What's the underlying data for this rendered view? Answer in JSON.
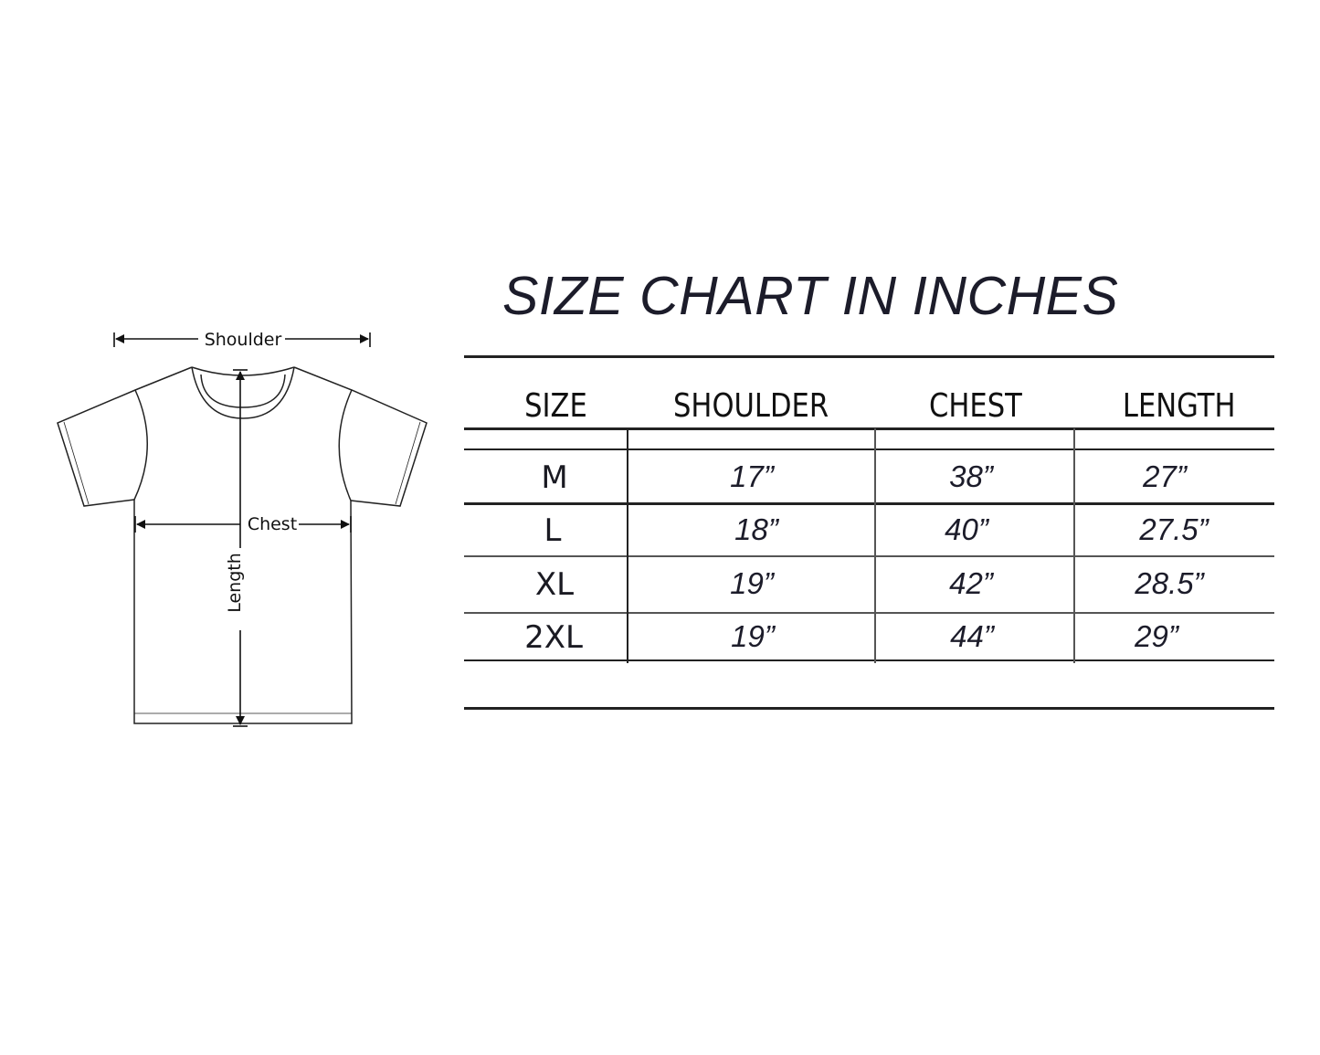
{
  "title": "SIZE CHART IN INCHES",
  "diagram": {
    "shoulder_label": "Shoulder",
    "chest_label": "Chest",
    "length_label": "Length"
  },
  "table": {
    "headers": [
      "SIZE",
      "SHOULDER",
      "CHEST",
      "LENGTH"
    ],
    "rows": [
      [
        "M",
        "17”",
        "38”",
        "27”"
      ],
      [
        "L",
        "18”",
        "40”",
        "27.5”"
      ],
      [
        "XL",
        "19”",
        "42”",
        "28.5”"
      ],
      [
        "2XL",
        "19”",
        "44”",
        "29”"
      ]
    ]
  }
}
